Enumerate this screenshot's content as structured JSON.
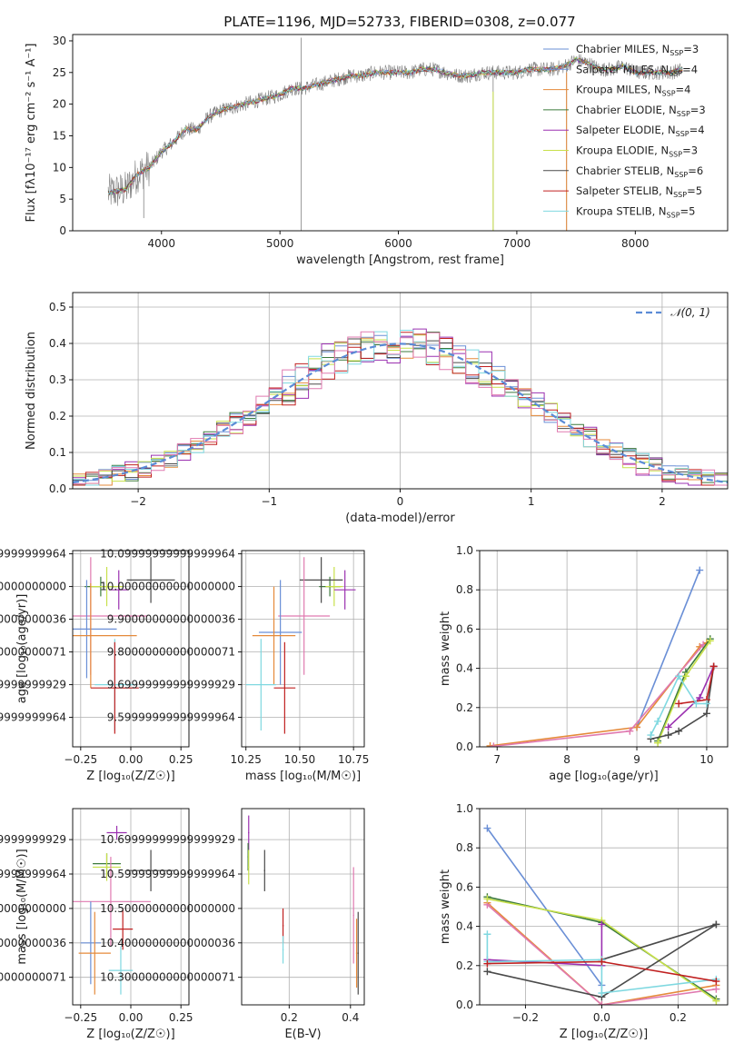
{
  "figure": {
    "title": "PLATE=1196, MJD=52733, FIBERID=0308, z=0.077"
  },
  "colors": {
    "Chabrier MILES": "#6a8fd6",
    "Salpeter MILES": "#6a8fd6",
    "Kroupa MILES": "#e58a3a",
    "Chabrier ELODIE": "#3c7a3c",
    "Salpeter ELODIE": "#9b30b0",
    "Kroupa ELODIE": "#c8e04a",
    "Chabrier STELIB": "#4a4a4a",
    "Salpeter STELIB": "#c02020",
    "Kroupa STELIB": "#7fd8e0",
    "extra": "#e07ab0",
    "data": "#808080",
    "normal": "#5b8bd6"
  },
  "chart_data": [
    {
      "id": "spectrum",
      "type": "line",
      "title": "PLATE=1196, MJD=52733, FIBERID=0308, z=0.077",
      "xlabel": "wavelength [Angstrom, rest frame]",
      "ylabel": "Flux [fλ10⁻¹⁷ erg cm⁻² s⁻¹ A⁻¹]",
      "xlim": [
        3250,
        8780
      ],
      "ylim": [
        0,
        31
      ],
      "xticks": [
        4000,
        5000,
        6000,
        7000,
        8000
      ],
      "yticks": [
        0,
        5,
        10,
        15,
        20,
        25,
        30
      ],
      "grid": false,
      "legend_position": "right",
      "legend": [
        {
          "name": "Chabrier MILES, N",
          "sub": "SSP",
          "suffix": "=3",
          "color": "#6a8fd6"
        },
        {
          "name": "Salpeter MILES, N",
          "sub": "SSP",
          "suffix": "=4",
          "color": "#6a8fd6"
        },
        {
          "name": "Kroupa MILES, N",
          "sub": "SSP",
          "suffix": "=4",
          "color": "#e58a3a"
        },
        {
          "name": "Chabrier ELODIE, N",
          "sub": "SSP",
          "suffix": "=3",
          "color": "#3c7a3c"
        },
        {
          "name": "Salpeter ELODIE, N",
          "sub": "SSP",
          "suffix": "=4",
          "color": "#9b30b0"
        },
        {
          "name": "Kroupa ELODIE, N",
          "sub": "SSP",
          "suffix": "=3",
          "color": "#c8e04a"
        },
        {
          "name": "Chabrier STELIB, N",
          "sub": "SSP",
          "suffix": "=6",
          "color": "#4a4a4a"
        },
        {
          "name": "Salpeter STELIB, N",
          "sub": "SSP",
          "suffix": "=5",
          "color": "#c02020"
        },
        {
          "name": "Kroupa STELIB, N",
          "sub": "SSP",
          "suffix": "=5",
          "color": "#7fd8e0"
        }
      ],
      "continuum": [
        [
          3550,
          6
        ],
        [
          3700,
          6.5
        ],
        [
          3800,
          9
        ],
        [
          3900,
          10
        ],
        [
          4000,
          12.5
        ],
        [
          4100,
          14
        ],
        [
          4200,
          16
        ],
        [
          4300,
          16
        ],
        [
          4400,
          18
        ],
        [
          4500,
          19
        ],
        [
          4600,
          19.5
        ],
        [
          4700,
          20
        ],
        [
          4800,
          20.5
        ],
        [
          4900,
          21
        ],
        [
          5000,
          21.5
        ],
        [
          5100,
          22.5
        ],
        [
          5200,
          22.5
        ],
        [
          5300,
          23
        ],
        [
          5400,
          23.5
        ],
        [
          5500,
          24
        ],
        [
          5600,
          24.5
        ],
        [
          5700,
          24.5
        ],
        [
          5800,
          25
        ],
        [
          5900,
          25
        ],
        [
          6000,
          25
        ],
        [
          6100,
          25
        ],
        [
          6200,
          25.5
        ],
        [
          6300,
          25.5
        ],
        [
          6400,
          25
        ],
        [
          6500,
          24.5
        ],
        [
          6600,
          24.5
        ],
        [
          6700,
          25
        ],
        [
          6800,
          25
        ],
        [
          6900,
          25
        ],
        [
          7000,
          25
        ],
        [
          7100,
          25.5
        ],
        [
          7200,
          25.5
        ],
        [
          7300,
          25.5
        ],
        [
          7400,
          26
        ],
        [
          7500,
          27
        ],
        [
          7600,
          26.5
        ],
        [
          7700,
          25.5
        ],
        [
          7800,
          25.5
        ],
        [
          7900,
          26
        ],
        [
          8000,
          25
        ],
        [
          8100,
          25
        ],
        [
          8200,
          25
        ],
        [
          8300,
          25
        ],
        [
          8400,
          25.5
        ]
      ],
      "spikes": [
        [
          5180,
          0,
          30.5
        ],
        [
          6800,
          0,
          25.2
        ],
        [
          7420,
          0,
          26.6
        ],
        [
          3850,
          2,
          10
        ]
      ],
      "noise_amplitude": 1.2
    },
    {
      "id": "residuals",
      "type": "histogram",
      "xlabel": "(data-model)/error",
      "ylabel": "Normed distribution",
      "xlim": [
        -2.5,
        2.5
      ],
      "ylim": [
        0,
        0.54
      ],
      "xticks": [
        -2,
        -1,
        0,
        1,
        2
      ],
      "yticks": [
        0.0,
        0.1,
        0.2,
        0.3,
        0.4,
        0.5
      ],
      "grid": true,
      "legend_position": "top-right",
      "legend": [
        {
          "name": "𝒩(0, 1)",
          "style": "dashed",
          "color": "#5b8bd6"
        }
      ],
      "bin_width": 0.1,
      "series": [
        {
          "color": "#6a8fd6",
          "scatter": 0.025
        },
        {
          "color": "#e58a3a",
          "scatter": 0.03
        },
        {
          "color": "#3c7a3c",
          "scatter": 0.028
        },
        {
          "color": "#9b30b0",
          "scatter": 0.035
        },
        {
          "color": "#c8e04a",
          "scatter": 0.03
        },
        {
          "color": "#4a4a4a",
          "scatter": 0.025
        },
        {
          "color": "#c02020",
          "scatter": 0.03
        },
        {
          "color": "#7fd8e0",
          "scatter": 0.028
        },
        {
          "color": "#e07ab0",
          "scatter": 0.032
        }
      ]
    },
    {
      "id": "Z_vs_age",
      "type": "errorbar",
      "xlabel": "Z [log₁₀(Z/Z☉)]",
      "ylabel": "age [log₁₀(age/yr)]",
      "xlim": [
        -0.29,
        0.29
      ],
      "ylim": [
        9.51,
        10.11
      ],
      "xticks": [
        -0.25,
        0.0,
        0.25
      ],
      "xticklabels": [
        "−0.25",
        "0.00",
        "0.25"
      ],
      "yticks": [
        9.6,
        9.7,
        9.8,
        9.9,
        10.0,
        10.1
      ],
      "grid": true,
      "points": [
        {
          "x": -0.15,
          "y": 10.0,
          "xerr": 0.08,
          "yerr": 0.03,
          "color": "#3c7a3c"
        },
        {
          "x": -0.12,
          "y": 10.0,
          "xerr": 0.08,
          "yerr": 0.06,
          "color": "#c8e04a"
        },
        {
          "x": -0.06,
          "y": 9.99,
          "xerr": 0.05,
          "yerr": 0.06,
          "color": "#9b30b0"
        },
        {
          "x": 0.1,
          "y": 10.02,
          "xerr": 0.12,
          "yerr": 0.07,
          "color": "#4a4a4a"
        },
        {
          "x": -0.2,
          "y": 9.91,
          "xerr": 0.28,
          "yerr": 0.18,
          "color": "#e07ab0"
        },
        {
          "x": -0.22,
          "y": 9.87,
          "xerr": 0.15,
          "yerr": 0.15,
          "color": "#6a8fd6"
        },
        {
          "x": -0.2,
          "y": 9.85,
          "xerr": 0.23,
          "yerr": 0.16,
          "color": "#e58a3a"
        },
        {
          "x": -0.08,
          "y": 9.7,
          "xerr": 0.1,
          "yerr": 0.14,
          "color": "#7fd8e0"
        },
        {
          "x": -0.08,
          "y": 9.69,
          "xerr": 0.12,
          "yerr": 0.14,
          "color": "#c02020"
        }
      ]
    },
    {
      "id": "mass_vs_age",
      "type": "errorbar",
      "xlabel": "mass [log₁₀(M/M☉)]",
      "ylabel": "",
      "xlim": [
        10.23,
        10.8
      ],
      "ylim": [
        9.51,
        10.11
      ],
      "xticks": [
        10.25,
        10.5,
        10.75
      ],
      "xticklabels": [
        "10.25",
        "10.50",
        "10.75"
      ],
      "yticks": [
        9.6,
        9.7,
        9.8,
        9.9,
        10.0,
        10.1
      ],
      "grid": true,
      "points": [
        {
          "x": 10.64,
          "y": 10.0,
          "xerr": 0.05,
          "yerr": 0.03,
          "color": "#3c7a3c"
        },
        {
          "x": 10.66,
          "y": 10.0,
          "xerr": 0.04,
          "yerr": 0.06,
          "color": "#c8e04a"
        },
        {
          "x": 10.71,
          "y": 9.99,
          "xerr": 0.05,
          "yerr": 0.06,
          "color": "#9b30b0"
        },
        {
          "x": 10.6,
          "y": 10.02,
          "xerr": 0.1,
          "yerr": 0.07,
          "color": "#4a4a4a"
        },
        {
          "x": 10.52,
          "y": 9.91,
          "xerr": 0.12,
          "yerr": 0.18,
          "color": "#e07ab0"
        },
        {
          "x": 10.41,
          "y": 9.86,
          "xerr": 0.1,
          "yerr": 0.16,
          "color": "#6a8fd6"
        },
        {
          "x": 10.38,
          "y": 9.85,
          "xerr": 0.1,
          "yerr": 0.15,
          "color": "#e58a3a"
        },
        {
          "x": 10.32,
          "y": 9.7,
          "xerr": 0.07,
          "yerr": 0.14,
          "color": "#7fd8e0"
        },
        {
          "x": 10.43,
          "y": 9.69,
          "xerr": 0.05,
          "yerr": 0.14,
          "color": "#c02020"
        }
      ]
    },
    {
      "id": "age_vs_weight",
      "type": "line",
      "xlabel": "age [log₁₀(age/yr)]",
      "ylabel": "mass weight",
      "xlim": [
        6.75,
        10.3
      ],
      "ylim": [
        0,
        1.0
      ],
      "xticks": [
        7,
        8,
        9,
        10
      ],
      "yticks": [
        0.0,
        0.2,
        0.4,
        0.6,
        0.8,
        1.0
      ],
      "yticklabels": [
        "0.0",
        "0.2",
        "0.4",
        "0.6",
        "0.8",
        "1.0"
      ],
      "grid": true,
      "series": [
        {
          "color": "#6a8fd6",
          "x": [
            9.0,
            9.9
          ],
          "y": [
            0.1,
            0.9
          ]
        },
        {
          "color": "#e58a3a",
          "x": [
            6.9,
            9.0,
            9.9,
            10.0
          ],
          "y": [
            0.005,
            0.1,
            0.51,
            0.53
          ]
        },
        {
          "color": "#e07ab0",
          "x": [
            6.95,
            8.9,
            9.95
          ],
          "y": [
            0.003,
            0.08,
            0.52
          ]
        },
        {
          "color": "#3c7a3c",
          "x": [
            9.3,
            9.7,
            10.05
          ],
          "y": [
            0.03,
            0.38,
            0.55
          ]
        },
        {
          "color": "#c8e04a",
          "x": [
            9.3,
            9.7,
            10.05
          ],
          "y": [
            0.02,
            0.36,
            0.54
          ]
        },
        {
          "color": "#9b30b0",
          "x": [
            9.45,
            9.9,
            10.1
          ],
          "y": [
            0.1,
            0.25,
            0.41
          ]
        },
        {
          "color": "#4a4a4a",
          "x": [
            9.2,
            9.45,
            9.6,
            10.0,
            10.1
          ],
          "y": [
            0.04,
            0.06,
            0.08,
            0.17,
            0.41
          ]
        },
        {
          "color": "#c02020",
          "x": [
            9.6,
            10.0,
            10.1
          ],
          "y": [
            0.22,
            0.24,
            0.41
          ]
        },
        {
          "color": "#7fd8e0",
          "x": [
            9.2,
            9.3,
            9.6,
            9.85,
            10.0
          ],
          "y": [
            0.06,
            0.13,
            0.36,
            0.22,
            0.22
          ]
        }
      ]
    },
    {
      "id": "Z_vs_mass",
      "type": "errorbar",
      "xlabel": "Z [log₁₀(Z/Z☉)]",
      "ylabel": "mass [log₁₀(M/M☉)]",
      "xlim": [
        -0.29,
        0.29
      ],
      "ylim": [
        10.22,
        10.79
      ],
      "xticks": [
        -0.25,
        0.0,
        0.25
      ],
      "xticklabels": [
        "−0.25",
        "0.00",
        "0.25"
      ],
      "yticks": [
        10.3,
        10.4,
        10.5,
        10.6,
        10.7
      ],
      "grid": true,
      "points": [
        {
          "x": -0.07,
          "y": 10.72,
          "xerr": 0.05,
          "yerr": 0.02,
          "color": "#9b30b0"
        },
        {
          "x": -0.12,
          "y": 10.63,
          "xerr": 0.07,
          "yerr": 0.03,
          "color": "#3c7a3c"
        },
        {
          "x": -0.12,
          "y": 10.62,
          "xerr": 0.07,
          "yerr": 0.04,
          "color": "#c8e04a"
        },
        {
          "x": 0.1,
          "y": 10.61,
          "xerr": 0.12,
          "yerr": 0.06,
          "color": "#4a4a4a"
        },
        {
          "x": -0.1,
          "y": 10.52,
          "xerr": 0.2,
          "yerr": 0.13,
          "color": "#e07ab0"
        },
        {
          "x": -0.04,
          "y": 10.44,
          "xerr": 0.05,
          "yerr": 0.06,
          "color": "#c02020"
        },
        {
          "x": -0.2,
          "y": 10.4,
          "xerr": 0.05,
          "yerr": 0.12,
          "color": "#6a8fd6"
        },
        {
          "x": -0.18,
          "y": 10.37,
          "xerr": 0.08,
          "yerr": 0.12,
          "color": "#e58a3a"
        },
        {
          "x": -0.05,
          "y": 10.32,
          "xerr": 0.06,
          "yerr": 0.07,
          "color": "#7fd8e0"
        }
      ]
    },
    {
      "id": "ebv_vs_mass",
      "type": "errorbar",
      "xlabel": "E(B-V)",
      "ylabel": "",
      "xlim": [
        0.045,
        0.445
      ],
      "ylim": [
        10.22,
        10.79
      ],
      "xticks": [
        0.2,
        0.4
      ],
      "xticklabels": [
        "0.2",
        "0.4"
      ],
      "yticks": [
        10.3,
        10.4,
        10.5,
        10.6,
        10.7
      ],
      "grid": true,
      "points": [
        {
          "x": 0.068,
          "y": 10.72,
          "xerr": 0.002,
          "yerr": 0.05,
          "color": "#9b30b0"
        },
        {
          "x": 0.066,
          "y": 10.65,
          "xerr": 0.002,
          "yerr": 0.04,
          "color": "#3c7a3c"
        },
        {
          "x": 0.068,
          "y": 10.62,
          "xerr": 0.002,
          "yerr": 0.05,
          "color": "#c8e04a"
        },
        {
          "x": 0.12,
          "y": 10.61,
          "xerr": 0.002,
          "yerr": 0.06,
          "color": "#4a4a4a"
        },
        {
          "x": 0.18,
          "y": 10.45,
          "xerr": 0.002,
          "yerr": 0.05,
          "color": "#c02020"
        },
        {
          "x": 0.18,
          "y": 10.38,
          "xerr": 0.002,
          "yerr": 0.04,
          "color": "#7fd8e0"
        },
        {
          "x": 0.41,
          "y": 10.48,
          "xerr": 0.002,
          "yerr": 0.14,
          "color": "#e07ab0"
        },
        {
          "x": 0.42,
          "y": 10.37,
          "xerr": 0.002,
          "yerr": 0.1,
          "color": "#e58a3a"
        },
        {
          "x": 0.425,
          "y": 10.37,
          "xerr": 0.002,
          "yerr": 0.12,
          "color": "#4a4a4a"
        }
      ]
    },
    {
      "id": "Z_vs_weight",
      "type": "line",
      "xlabel": "Z [log₁₀(Z/Z☉)]",
      "ylabel": "mass weight",
      "xlim": [
        -0.32,
        0.33
      ],
      "ylim": [
        0,
        1.0
      ],
      "xticks": [
        -0.2,
        0.0,
        0.2
      ],
      "xticklabels": [
        "−0.2",
        "0.0",
        "0.2"
      ],
      "yticks": [
        0.0,
        0.2,
        0.4,
        0.6,
        0.8,
        1.0
      ],
      "yticklabels": [
        "0.0",
        "0.2",
        "0.4",
        "0.6",
        "0.8",
        "1.0"
      ],
      "grid": true,
      "series": [
        {
          "color": "#6a8fd6",
          "x": [
            -0.3,
            0.0
          ],
          "y": [
            0.9,
            0.1
          ]
        },
        {
          "color": "#e58a3a",
          "x": [
            -0.3,
            0.0,
            0.3
          ],
          "y": [
            0.52,
            0.0,
            0.1
          ]
        },
        {
          "color": "#e07ab0",
          "x": [
            -0.3,
            0.0,
            0.3
          ],
          "y": [
            0.51,
            0.0,
            0.08
          ]
        },
        {
          "color": "#3c7a3c",
          "x": [
            -0.3,
            0.0,
            0.3
          ],
          "y": [
            0.55,
            0.42,
            0.03
          ]
        },
        {
          "color": "#c8e04a",
          "x": [
            -0.3,
            0.0,
            0.3
          ],
          "y": [
            0.54,
            0.43,
            0.02
          ]
        },
        {
          "color": "#9b30b0",
          "x": [
            -0.3,
            0.0,
            0.0
          ],
          "y": [
            0.23,
            0.2,
            0.41
          ]
        },
        {
          "color": "#4a4a4a",
          "x": [
            -0.3,
            0.0,
            0.3
          ],
          "y": [
            0.17,
            0.04,
            0.41
          ]
        },
        {
          "color": "#4a4a4a",
          "x": [
            0.0,
            0.3
          ],
          "y": [
            0.23,
            0.41
          ]
        },
        {
          "color": "#7fd8e0",
          "x": [
            -0.3,
            -0.3,
            0.0,
            0.0,
            0.3
          ],
          "y": [
            0.36,
            0.22,
            0.23,
            0.06,
            0.13
          ]
        },
        {
          "color": "#c02020",
          "x": [
            -0.3,
            0.0,
            0.3
          ],
          "y": [
            0.21,
            0.22,
            0.12
          ]
        }
      ]
    }
  ]
}
